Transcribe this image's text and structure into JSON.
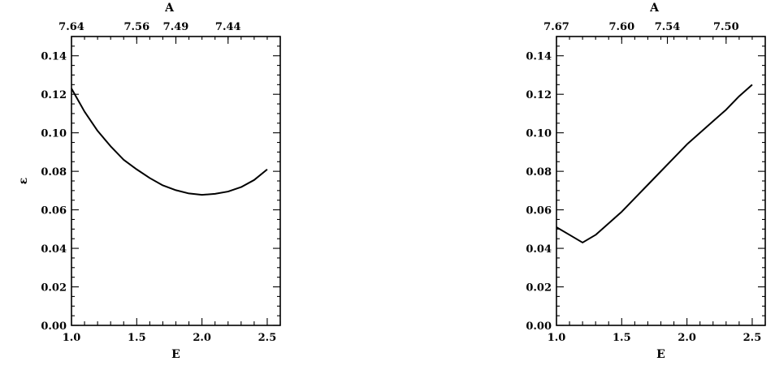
{
  "chart_data": [
    {
      "type": "line",
      "xlabel": "E",
      "ylabel": "ε",
      "top_axis_label": "A",
      "xlim": [
        1.0,
        2.6
      ],
      "ylim": [
        0.0,
        0.15
      ],
      "x_ticks": [
        1.0,
        1.5,
        2.0,
        2.5
      ],
      "x_tick_labels": [
        "1.0",
        "1.5",
        "2.0",
        "2.5"
      ],
      "y_ticks": [
        0.0,
        0.02,
        0.04,
        0.06,
        0.08,
        0.1,
        0.12,
        0.14
      ],
      "y_tick_labels": [
        "0.00",
        "0.02",
        "0.04",
        "0.06",
        "0.08",
        "0.10",
        "0.12",
        "0.14"
      ],
      "top_ticks": [
        1.0,
        1.5,
        1.8,
        2.2
      ],
      "top_tick_labels": [
        "7.64",
        "7.56",
        "7.49",
        "7.44"
      ],
      "series": [
        {
          "x": [
            1.0,
            1.1,
            1.2,
            1.3,
            1.4,
            1.5,
            1.6,
            1.7,
            1.8,
            1.9,
            2.0,
            2.1,
            2.2,
            2.3,
            2.4,
            2.5
          ],
          "y": [
            0.123,
            0.111,
            0.101,
            0.093,
            0.086,
            0.081,
            0.0765,
            0.0727,
            0.0702,
            0.0685,
            0.0678,
            0.0683,
            0.0695,
            0.0718,
            0.0755,
            0.081
          ]
        }
      ],
      "grid": false
    },
    {
      "type": "line",
      "xlabel": "E",
      "ylabel": "",
      "top_axis_label": "A",
      "xlim": [
        1.0,
        2.6
      ],
      "ylim": [
        0.0,
        0.15
      ],
      "x_ticks": [
        1.0,
        1.5,
        2.0,
        2.5
      ],
      "x_tick_labels": [
        "1.0",
        "1.5",
        "2.0",
        "2.5"
      ],
      "y_ticks": [
        0.0,
        0.02,
        0.04,
        0.06,
        0.08,
        0.1,
        0.12,
        0.14
      ],
      "y_tick_labels": [
        "0.00",
        "0.02",
        "0.04",
        "0.06",
        "0.08",
        "0.10",
        "0.12",
        "0.14"
      ],
      "top_ticks": [
        1.0,
        1.5,
        1.85,
        2.3
      ],
      "top_tick_labels": [
        "7.67",
        "7.60",
        "7.54",
        "7.50"
      ],
      "series": [
        {
          "x": [
            1.0,
            1.1,
            1.2,
            1.3,
            1.4,
            1.5,
            1.6,
            1.7,
            1.8,
            1.9,
            2.0,
            2.1,
            2.2,
            2.3,
            2.4,
            2.5
          ],
          "y": [
            0.051,
            0.047,
            0.043,
            0.047,
            0.053,
            0.059,
            0.066,
            0.073,
            0.08,
            0.087,
            0.094,
            0.1,
            0.106,
            0.112,
            0.119,
            0.125
          ]
        }
      ],
      "grid": false
    }
  ]
}
